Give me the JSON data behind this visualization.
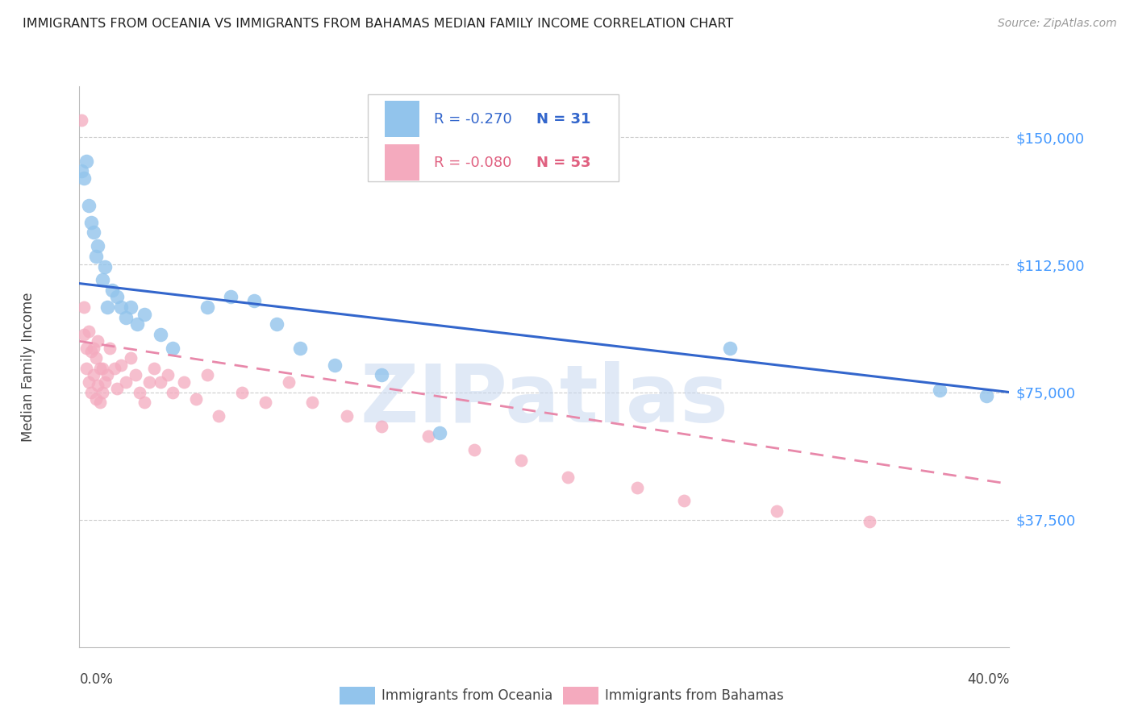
{
  "title": "IMMIGRANTS FROM OCEANIA VS IMMIGRANTS FROM BAHAMAS MEDIAN FAMILY INCOME CORRELATION CHART",
  "source": "Source: ZipAtlas.com",
  "ylabel": "Median Family Income",
  "y_ticks": [
    37500,
    75000,
    112500,
    150000
  ],
  "y_tick_labels": [
    "$37,500",
    "$75,000",
    "$112,500",
    "$150,000"
  ],
  "x_min": 0.0,
  "x_max": 0.4,
  "y_min": 0,
  "y_max": 165000,
  "legend_blue_r": "R = -0.270",
  "legend_blue_n": "N = 31",
  "legend_pink_r": "R = -0.080",
  "legend_pink_n": "N = 53",
  "blue_color": "#92C4EC",
  "pink_color": "#F4AABE",
  "blue_line_color": "#3366CC",
  "pink_line_color": "#E888AA",
  "watermark": "ZIPatlas",
  "watermark_color": "#C8D8F0",
  "blue_line_x0": 0.0,
  "blue_line_y0": 107000,
  "blue_line_x1": 0.4,
  "blue_line_y1": 75000,
  "pink_line_x0": 0.0,
  "pink_line_y0": 90000,
  "pink_line_x1": 0.4,
  "pink_line_y1": 48000,
  "oceania_x": [
    0.001,
    0.002,
    0.003,
    0.004,
    0.005,
    0.006,
    0.007,
    0.008,
    0.01,
    0.011,
    0.012,
    0.014,
    0.016,
    0.018,
    0.02,
    0.022,
    0.025,
    0.028,
    0.035,
    0.04,
    0.055,
    0.065,
    0.075,
    0.085,
    0.095,
    0.11,
    0.13,
    0.155,
    0.28,
    0.37,
    0.39
  ],
  "oceania_y": [
    140000,
    138000,
    143000,
    130000,
    125000,
    122000,
    115000,
    118000,
    108000,
    112000,
    100000,
    105000,
    103000,
    100000,
    97000,
    100000,
    95000,
    98000,
    92000,
    88000,
    100000,
    103000,
    102000,
    95000,
    88000,
    83000,
    80000,
    63000,
    88000,
    75500,
    74000
  ],
  "bahamas_x": [
    0.001,
    0.002,
    0.002,
    0.003,
    0.003,
    0.004,
    0.004,
    0.005,
    0.005,
    0.006,
    0.006,
    0.007,
    0.007,
    0.008,
    0.008,
    0.009,
    0.009,
    0.01,
    0.01,
    0.011,
    0.012,
    0.013,
    0.015,
    0.016,
    0.018,
    0.02,
    0.022,
    0.024,
    0.026,
    0.028,
    0.03,
    0.032,
    0.035,
    0.038,
    0.04,
    0.045,
    0.05,
    0.055,
    0.06,
    0.07,
    0.08,
    0.09,
    0.1,
    0.115,
    0.13,
    0.15,
    0.17,
    0.19,
    0.21,
    0.24,
    0.26,
    0.3,
    0.34
  ],
  "bahamas_y": [
    155000,
    92000,
    100000,
    88000,
    82000,
    93000,
    78000,
    87000,
    75000,
    88000,
    80000,
    85000,
    73000,
    90000,
    77000,
    82000,
    72000,
    82000,
    75000,
    78000,
    80000,
    88000,
    82000,
    76000,
    83000,
    78000,
    85000,
    80000,
    75000,
    72000,
    78000,
    82000,
    78000,
    80000,
    75000,
    78000,
    73000,
    80000,
    68000,
    75000,
    72000,
    78000,
    72000,
    68000,
    65000,
    62000,
    58000,
    55000,
    50000,
    47000,
    43000,
    40000,
    37000
  ]
}
